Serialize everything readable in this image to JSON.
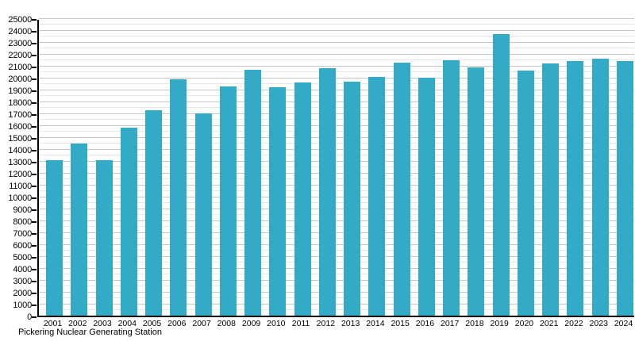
{
  "chart_data": {
    "type": "bar",
    "title": "",
    "caption": "Pickering Nuclear Generating Station",
    "xlabel": "",
    "ylabel": "",
    "categories": [
      "2001",
      "2002",
      "2003",
      "2004",
      "2005",
      "2006",
      "2007",
      "2008",
      "2009",
      "2010",
      "2011",
      "2012",
      "2013",
      "2014",
      "2015",
      "2016",
      "2017",
      "2018",
      "2019",
      "2020",
      "2021",
      "2022",
      "2023",
      "2024"
    ],
    "values": [
      13100,
      14500,
      13100,
      15800,
      17300,
      19900,
      17000,
      19300,
      20700,
      19200,
      19600,
      20800,
      19700,
      20100,
      21300,
      20000,
      21500,
      20900,
      23700,
      20600,
      21200,
      21400,
      21600,
      21400
    ],
    "ylim": [
      0,
      25000
    ],
    "y_major_step": 1000,
    "y_minor_step": 500,
    "y_tick_labels": [
      "0",
      "1000",
      "2000",
      "3000",
      "4000",
      "5000",
      "6000",
      "7000",
      "8000",
      "9000",
      "10000",
      "11000",
      "12000",
      "13000",
      "14000",
      "15000",
      "16000",
      "17000",
      "18000",
      "19000",
      "20000",
      "21000",
      "22000",
      "23000",
      "24000",
      "25000"
    ],
    "legend": null,
    "grid": true,
    "bar_color": "#33abc7",
    "axis_color": "#000000",
    "background_color": "#ffffff"
  }
}
